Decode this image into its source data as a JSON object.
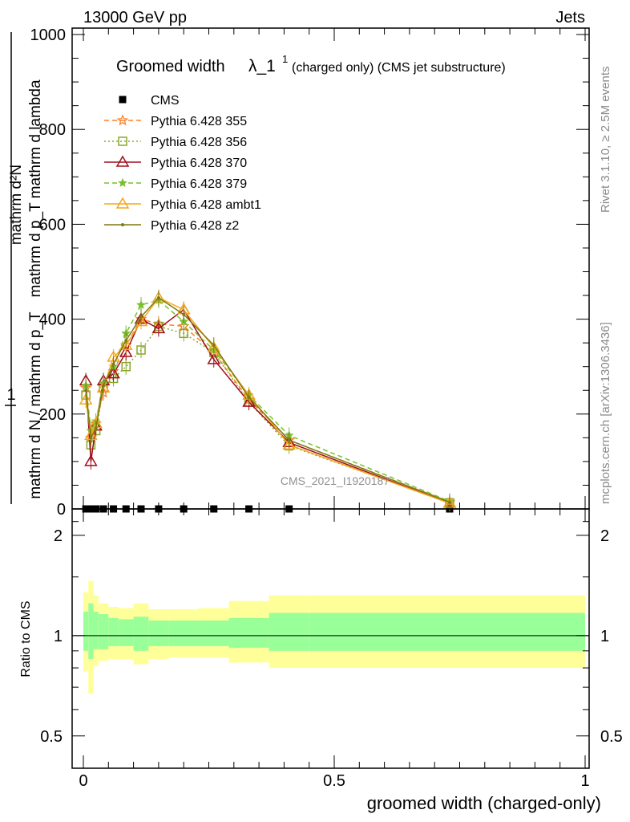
{
  "header": {
    "left": "13000 GeV pp",
    "right": "Jets"
  },
  "side": {
    "rivet": "Rivet 3.1.10, ≥ 2.5M events",
    "mcplots": "mcplots.cern.ch [arXiv:1306.3436]"
  },
  "colors": {
    "cms": "#000000",
    "p355": "#ff7f2a",
    "p356": "#8aa829",
    "p370": "#a00d1e",
    "p379": "#77c12e",
    "ambt1": "#f4a81c",
    "z2": "#7f7a13",
    "band_stat": "#99ff99",
    "band_syst": "#ffff99"
  },
  "chart_data": [
    {
      "type": "line",
      "title": "Groomed width λ_1¹ (charged only) (CMS jet substructure)",
      "title_main": "Groomed width",
      "title_sym": "λ_1",
      "title_sup": "1",
      "title_rest": "(charged only) (CMS jet substructure)",
      "ylabel_num": "mathrm d²N",
      "ylabel_den_top": "mathrm d p_T mathrm d lambda",
      "ylabel_den_mid": "mathrm d p_T mathrm d p_T",
      "ylabel_frac": "1",
      "ylabel_den_bottom": "mathrm d N / mathrm d p_T",
      "ylabel_prefix": "mathrm d N / mathrm d p_T",
      "ylabel_lines": [
        "1",
        "mathrm d N / mathrm d p",
        "mathrm d²N",
        "mathrm d p_T mathrm d lambda"
      ],
      "xlim": [
        0,
        1
      ],
      "ylim": [
        0,
        1000
      ],
      "yticks": [
        0,
        200,
        400,
        600,
        800,
        1000
      ],
      "yticklabels": [
        "0",
        "200",
        "400",
        "600",
        "800",
        "1000"
      ],
      "watermark": "CMS_2021_I1920187",
      "legend_position": "top-left",
      "x": [
        0.005,
        0.015,
        0.025,
        0.04,
        0.06,
        0.085,
        0.115,
        0.15,
        0.2,
        0.26,
        0.33,
        0.41,
        0.73
      ],
      "series": [
        {
          "name": "CMS",
          "key": "cms",
          "style": "square",
          "values": [
            0,
            0,
            0,
            0,
            0,
            0,
            0,
            0,
            0,
            0,
            0,
            0,
            0
          ]
        },
        {
          "name": "Pythia 6.428 355",
          "key": "p355",
          "style": "star",
          "dash": "6,4",
          "values": [
            255,
            150,
            180,
            245,
            290,
            345,
            400,
            390,
            385,
            330,
            230,
            145,
            15
          ]
        },
        {
          "name": "Pythia 6.428 356",
          "key": "p356",
          "style": "open-square",
          "dash": "2,3",
          "values": [
            240,
            135,
            165,
            255,
            275,
            300,
            335,
            385,
            370,
            330,
            225,
            133,
            13
          ]
        },
        {
          "name": "Pythia 6.428 370",
          "key": "p370",
          "style": "open-triangle",
          "dash": "",
          "values": [
            270,
            100,
            175,
            270,
            285,
            330,
            400,
            380,
            420,
            315,
            225,
            140,
            12
          ]
        },
        {
          "name": "Pythia 6.428 379",
          "key": "p379",
          "style": "star-small",
          "dash": "6,4",
          "values": [
            260,
            165,
            185,
            265,
            300,
            370,
            430,
            440,
            395,
            335,
            240,
            155,
            16
          ]
        },
        {
          "name": "Pythia 6.428 ambt1",
          "key": "ambt1",
          "style": "open-triangle",
          "dash": "",
          "values": [
            230,
            155,
            180,
            255,
            320,
            345,
            395,
            445,
            420,
            340,
            240,
            135,
            12
          ]
        },
        {
          "name": "Pythia 6.428 z2",
          "key": "z2",
          "style": "dot",
          "dash": "",
          "values": [
            250,
            150,
            170,
            260,
            305,
            355,
            405,
            445,
            410,
            345,
            235,
            145,
            14
          ]
        }
      ]
    },
    {
      "type": "area",
      "ylabel": "Ratio to CMS",
      "xlabel": "groomed width (charged-only)",
      "xlim": [
        0,
        1
      ],
      "ylim": [
        0.4,
        2.4
      ],
      "xticks": [
        0,
        0.5,
        1
      ],
      "xticklabels": [
        "0",
        "0.5",
        "1"
      ],
      "yticks": [
        0.5,
        1,
        2
      ],
      "yticklabels": [
        "0.5",
        "1",
        "2"
      ],
      "bins": [
        0,
        0.01,
        0.02,
        0.03,
        0.05,
        0.07,
        0.1,
        0.13,
        0.17,
        0.23,
        0.29,
        0.37,
        0.45,
        1.0
      ],
      "bins_note": "bin edges along x",
      "stat_hi": [
        1.18,
        1.25,
        1.18,
        1.16,
        1.13,
        1.12,
        1.14,
        1.11,
        1.11,
        1.11,
        1.13,
        1.17,
        1.17
      ],
      "stat_lo": [
        0.9,
        0.85,
        0.91,
        0.91,
        0.93,
        0.93,
        0.9,
        0.93,
        0.93,
        0.93,
        0.92,
        0.9,
        0.9
      ],
      "syst_hi": [
        1.35,
        1.46,
        1.32,
        1.25,
        1.22,
        1.21,
        1.25,
        1.2,
        1.2,
        1.21,
        1.27,
        1.32,
        1.32
      ],
      "syst_lo": [
        0.78,
        0.67,
        0.81,
        0.84,
        0.85,
        0.85,
        0.82,
        0.85,
        0.86,
        0.86,
        0.83,
        0.8,
        0.8
      ]
    }
  ]
}
